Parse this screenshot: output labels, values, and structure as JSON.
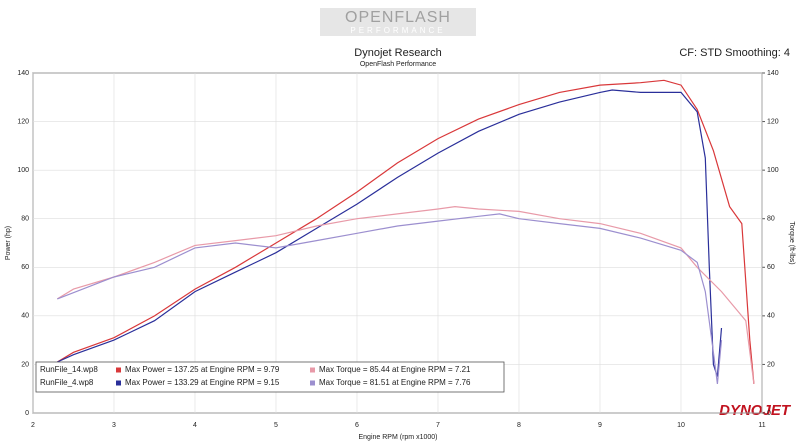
{
  "logo": {
    "main": "OPENFLASH",
    "sub": "PERFORMANCE"
  },
  "brand": "DYNOJET",
  "chart_data": {
    "type": "line",
    "title": "Dynojet Research",
    "subtitle": "OpenFlash Performance",
    "corner_note": "CF: STD Smoothing: 4",
    "x_label": "Engine RPM (rpm x1000)",
    "y_label": "Power (hp)",
    "y2_label": "Torque (ft-lbs)",
    "xlim": [
      2,
      11
    ],
    "xticks": [
      2,
      3,
      4,
      5,
      6,
      7,
      8,
      9,
      10,
      11
    ],
    "ylim": [
      0,
      140
    ],
    "yticks": [
      0,
      20,
      40,
      60,
      80,
      100,
      120,
      140
    ],
    "y2lim": [
      0,
      140
    ],
    "y2ticks": [
      0,
      20,
      40,
      60,
      80,
      100,
      120,
      140
    ],
    "grid": true,
    "series": [
      {
        "name": "RunFile_14.wp8",
        "color": "#d9383a",
        "axis": "y",
        "x": [
          2.3,
          2.5,
          3,
          3.5,
          4,
          4.5,
          5,
          5.5,
          6,
          6.5,
          7,
          7.5,
          8,
          8.5,
          9,
          9.5,
          9.79,
          10,
          10.2,
          10.4,
          10.6,
          10.75,
          10.85,
          10.9
        ],
        "values": [
          21,
          25,
          31,
          40,
          51,
          60,
          70,
          80,
          91,
          103,
          113,
          121,
          127,
          132,
          135,
          136,
          137,
          135,
          125,
          108,
          85,
          78,
          30,
          12
        ]
      },
      {
        "name": "RunFile_4.wp8",
        "color": "#2a2f9a",
        "axis": "y",
        "x": [
          2.3,
          2.5,
          3,
          3.5,
          4,
          4.5,
          5,
          5.5,
          6,
          6.5,
          7,
          7.5,
          8,
          8.5,
          9,
          9.15,
          9.5,
          10,
          10.2,
          10.3,
          10.35,
          10.4,
          10.45,
          10.5
        ],
        "values": [
          21,
          24,
          30,
          38,
          50,
          58,
          66,
          76,
          86,
          97,
          107,
          116,
          123,
          128,
          132,
          133,
          132,
          132,
          124,
          105,
          60,
          20,
          15,
          35
        ]
      },
      {
        "name": "RunFile_14.wp8",
        "color": "#e89aa8",
        "axis": "y2",
        "x": [
          2.3,
          2.5,
          3,
          3.5,
          4,
          4.5,
          5,
          5.5,
          6,
          6.5,
          7,
          7.21,
          7.5,
          8,
          8.5,
          9,
          9.5,
          10,
          10.2,
          10.5,
          10.7,
          10.8,
          10.9
        ],
        "values": [
          47,
          51,
          56,
          62,
          69,
          71,
          73,
          77,
          80,
          82,
          84,
          85,
          84,
          83,
          80,
          78,
          74,
          68,
          60,
          50,
          42,
          38,
          12
        ]
      },
      {
        "name": "RunFile_4.wp8",
        "color": "#9c8fcf",
        "axis": "y2",
        "x": [
          2.3,
          3,
          3.5,
          4,
          4.5,
          5,
          5.5,
          6,
          6.5,
          7,
          7.5,
          7.76,
          8,
          8.5,
          9,
          9.5,
          10,
          10.2,
          10.3,
          10.4,
          10.45,
          10.5
        ],
        "values": [
          47,
          56,
          60,
          68,
          70,
          68,
          71,
          74,
          77,
          79,
          81,
          82,
          80,
          78,
          76,
          72,
          67,
          62,
          50,
          25,
          12,
          30
        ]
      }
    ],
    "legend": [
      {
        "file": "RunFile_14.wp8",
        "power": "Max Power = 137.25 at Engine RPM = 9.79",
        "torque": "Max Torque = 85.44 at Engine RPM = 7.21"
      },
      {
        "file": "RunFile_4.wp8",
        "power": "Max Power = 133.29 at Engine RPM = 9.15",
        "torque": "Max Torque = 81.51 at Engine RPM = 7.76"
      }
    ]
  }
}
